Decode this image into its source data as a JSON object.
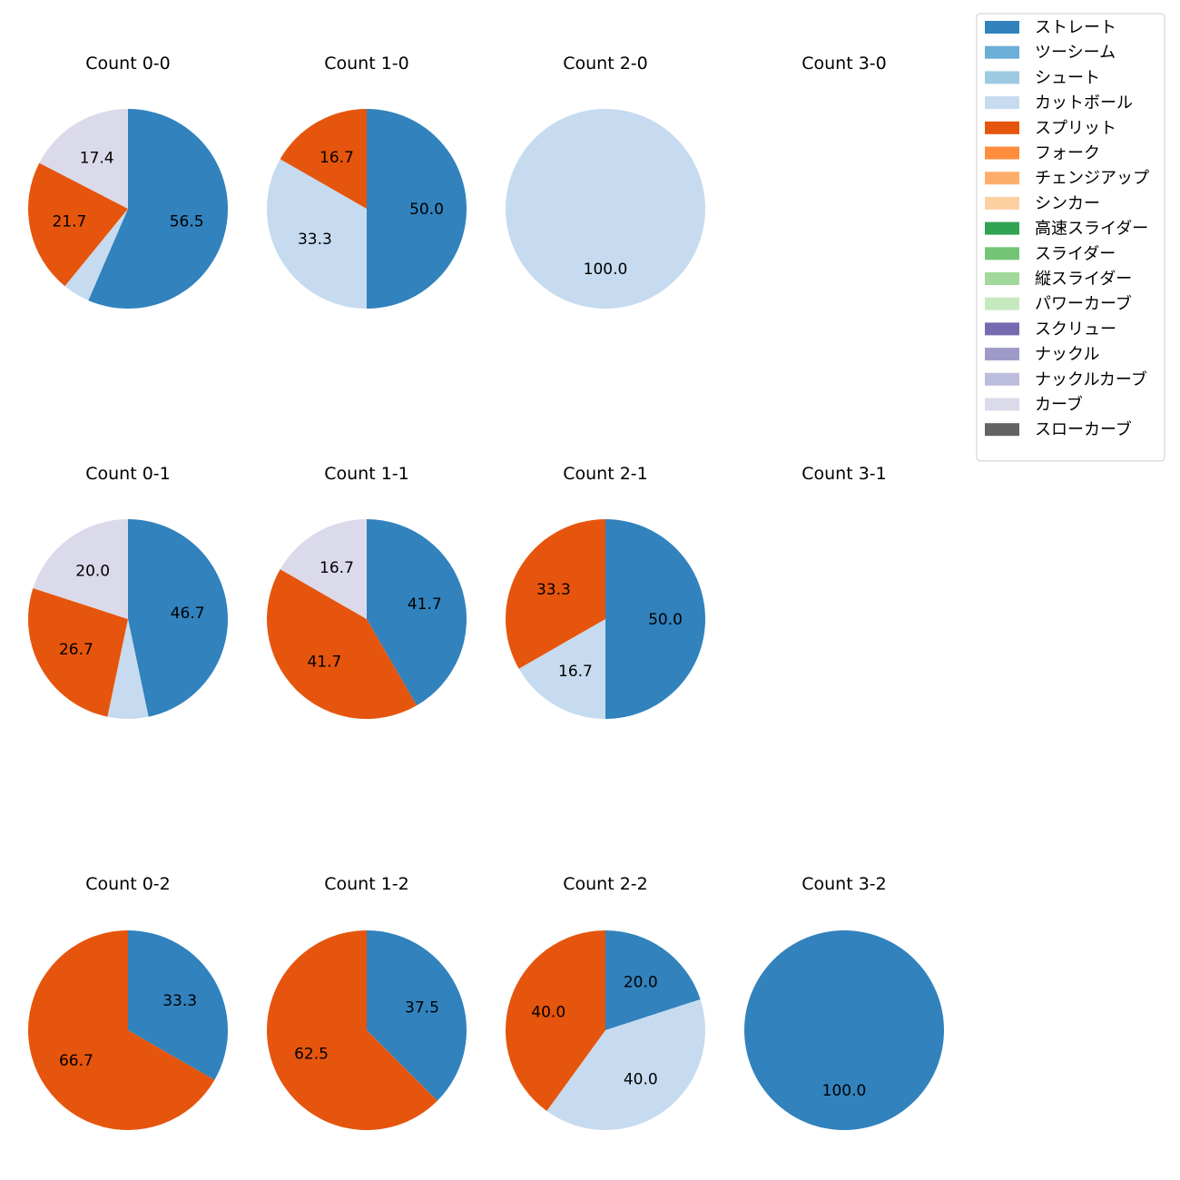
{
  "chart_data": {
    "type": "pie",
    "legend": {
      "placement": "top-right",
      "entries": [
        {
          "name": "ストレート",
          "color": "#3182bd"
        },
        {
          "name": "ツーシーム",
          "color": "#6baed6"
        },
        {
          "name": "シュート",
          "color": "#9ecae1"
        },
        {
          "name": "カットボール",
          "color": "#c6dbef"
        },
        {
          "name": "スプリット",
          "color": "#e6550d"
        },
        {
          "name": "フォーク",
          "color": "#fd8d3c"
        },
        {
          "name": "チェンジアップ",
          "color": "#fdae6b"
        },
        {
          "name": "シンカー",
          "color": "#fdd0a2"
        },
        {
          "name": "高速スライダー",
          "color": "#31a354"
        },
        {
          "name": "スライダー",
          "color": "#74c476"
        },
        {
          "name": "縦スライダー",
          "color": "#a1d99b"
        },
        {
          "name": "パワーカーブ",
          "color": "#c7e9c0"
        },
        {
          "name": "スクリュー",
          "color": "#756bb1"
        },
        {
          "name": "ナックル",
          "color": "#9e9ac8"
        },
        {
          "name": "ナックルカーブ",
          "color": "#bcbddc"
        },
        {
          "name": "カーブ",
          "color": "#dadaeb"
        },
        {
          "name": "スローカーブ",
          "color": "#636363"
        }
      ]
    },
    "panels": [
      {
        "title": "Count 0-0",
        "slices": [
          {
            "pitch": "ストレート",
            "value": 56.5,
            "label": "56.5"
          },
          {
            "pitch": "カットボール",
            "value": 4.4,
            "label": ""
          },
          {
            "pitch": "スプリット",
            "value": 21.7,
            "label": "21.7"
          },
          {
            "pitch": "カーブ",
            "value": 17.4,
            "label": "17.4"
          }
        ]
      },
      {
        "title": "Count 1-0",
        "slices": [
          {
            "pitch": "ストレート",
            "value": 50.0,
            "label": "50.0"
          },
          {
            "pitch": "カットボール",
            "value": 33.3,
            "label": "33.3"
          },
          {
            "pitch": "スプリット",
            "value": 16.7,
            "label": "16.7"
          }
        ]
      },
      {
        "title": "Count 2-0",
        "slices": [
          {
            "pitch": "カットボール",
            "value": 100.0,
            "label": "100.0"
          }
        ]
      },
      {
        "title": "Count 3-0",
        "slices": []
      },
      {
        "title": "Count 0-1",
        "slices": [
          {
            "pitch": "ストレート",
            "value": 46.7,
            "label": "46.7"
          },
          {
            "pitch": "カットボール",
            "value": 6.6,
            "label": ""
          },
          {
            "pitch": "スプリット",
            "value": 26.7,
            "label": "26.7"
          },
          {
            "pitch": "カーブ",
            "value": 20.0,
            "label": "20.0"
          }
        ]
      },
      {
        "title": "Count 1-1",
        "slices": [
          {
            "pitch": "ストレート",
            "value": 41.7,
            "label": "41.7"
          },
          {
            "pitch": "スプリット",
            "value": 41.7,
            "label": "41.7"
          },
          {
            "pitch": "カーブ",
            "value": 16.7,
            "label": "16.7"
          }
        ]
      },
      {
        "title": "Count 2-1",
        "slices": [
          {
            "pitch": "ストレート",
            "value": 50.0,
            "label": "50.0"
          },
          {
            "pitch": "カットボール",
            "value": 16.7,
            "label": "16.7"
          },
          {
            "pitch": "スプリット",
            "value": 33.3,
            "label": "33.3"
          }
        ]
      },
      {
        "title": "Count 3-1",
        "slices": []
      },
      {
        "title": "Count 0-2",
        "slices": [
          {
            "pitch": "ストレート",
            "value": 33.3,
            "label": "33.3"
          },
          {
            "pitch": "スプリット",
            "value": 66.7,
            "label": "66.7"
          }
        ]
      },
      {
        "title": "Count 1-2",
        "slices": [
          {
            "pitch": "ストレート",
            "value": 37.5,
            "label": "37.5"
          },
          {
            "pitch": "スプリット",
            "value": 62.5,
            "label": "62.5"
          }
        ]
      },
      {
        "title": "Count 2-2",
        "slices": [
          {
            "pitch": "ストレート",
            "value": 20.0,
            "label": "20.0"
          },
          {
            "pitch": "カットボール",
            "value": 40.0,
            "label": "40.0"
          },
          {
            "pitch": "スプリット",
            "value": 40.0,
            "label": "40.0"
          }
        ]
      },
      {
        "title": "Count 3-2",
        "slices": [
          {
            "pitch": "ストレート",
            "value": 100.0,
            "label": "100.0"
          }
        ]
      }
    ]
  }
}
